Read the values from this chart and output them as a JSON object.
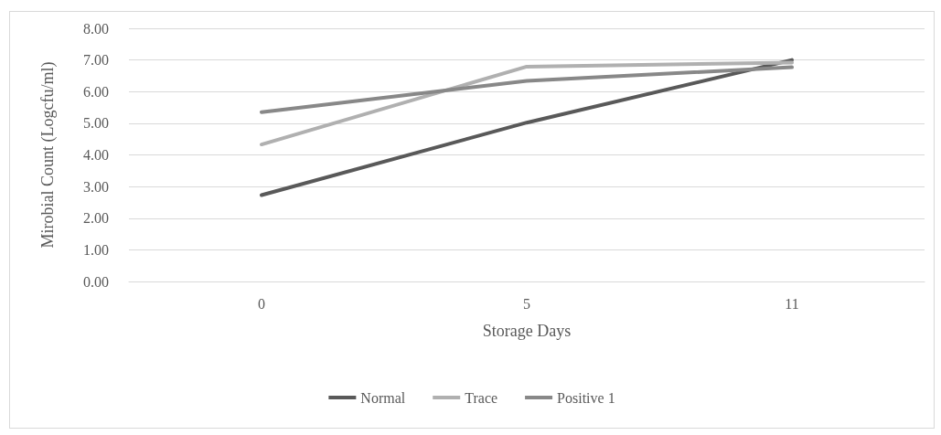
{
  "chart_data": {
    "type": "line",
    "xlabel": "Storage Days",
    "ylabel": "Mirobial Count (Logcfu/ml)",
    "categories": [
      "0",
      "5",
      "11"
    ],
    "series": [
      {
        "name": "Normal",
        "color": "#595959",
        "values": [
          2.73,
          5.02,
          7.0
        ]
      },
      {
        "name": "Trace",
        "color": "#b0b0b0",
        "values": [
          4.33,
          6.79,
          6.92
        ]
      },
      {
        "name": "Positive 1",
        "color": "#888888",
        "values": [
          5.35,
          6.34,
          6.77
        ]
      }
    ],
    "ylim": [
      0,
      8
    ],
    "yticks": [
      {
        "value": 0,
        "label": "0.00"
      },
      {
        "value": 1,
        "label": "1.00"
      },
      {
        "value": 2,
        "label": "2.00"
      },
      {
        "value": 3,
        "label": "3.00"
      },
      {
        "value": 4,
        "label": "4.00"
      },
      {
        "value": 5,
        "label": "5.00"
      },
      {
        "value": 6,
        "label": "6.00"
      },
      {
        "value": 7,
        "label": "7.00"
      },
      {
        "value": 8,
        "label": "8.00"
      }
    ],
    "grid": "y",
    "legend": "bottom",
    "marker": "none",
    "line_style": "solid"
  }
}
